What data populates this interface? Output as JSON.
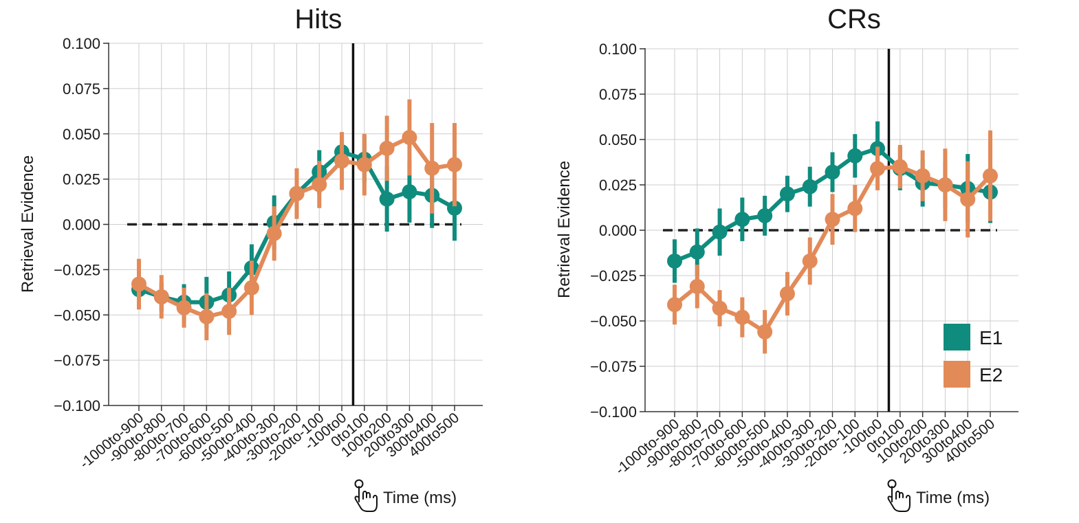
{
  "colors": {
    "e1": "#0F8C7E",
    "e2": "#E28A58",
    "grid": "#cccccc",
    "axis": "#333333",
    "zero_line": "#222222",
    "vline": "#111111"
  },
  "chart_data": [
    {
      "type": "line",
      "title": "Hits",
      "xlabel": "Time (ms)",
      "ylabel": "Retrieval Evidence",
      "ylim": [
        -0.1,
        0.1
      ],
      "yticks": [
        "0.100",
        "0.075",
        "0.050",
        "0.025",
        "0.000",
        "−0.025",
        "−0.050",
        "−0.075",
        "−0.100"
      ],
      "categories": [
        "-1000to-900",
        "-900to-800",
        "-800to-700",
        "-700to-600",
        "-600to-500",
        "-500to-400",
        "-400to-300",
        "-300to-200",
        "-200to-100",
        "-100to0",
        "0to100",
        "100to200",
        "200to300",
        "300to400",
        "400to500"
      ],
      "grid": true,
      "reference_lines": {
        "horizontal_y": 0,
        "vertical_between": [
          "-100to0",
          "0to100"
        ]
      },
      "series": [
        {
          "name": "E1",
          "color_key": "e1",
          "values": [
            -0.036,
            -0.04,
            -0.043,
            -0.043,
            -0.039,
            -0.024,
            0.001,
            0.017,
            0.029,
            0.04,
            0.036,
            0.014,
            0.018,
            0.016,
            0.009
          ],
          "errors": [
            0.01,
            0.008,
            0.01,
            0.014,
            0.013,
            0.013,
            0.015,
            0.013,
            0.012,
            0.009,
            0.013,
            0.018,
            0.017,
            0.018,
            0.018
          ]
        },
        {
          "name": "E2",
          "color_key": "e2",
          "values": [
            -0.033,
            -0.04,
            -0.046,
            -0.051,
            -0.048,
            -0.035,
            -0.005,
            0.017,
            0.022,
            0.035,
            0.033,
            0.042,
            0.048,
            0.031,
            0.033
          ],
          "errors": [
            0.014,
            0.012,
            0.011,
            0.013,
            0.013,
            0.015,
            0.015,
            0.014,
            0.013,
            0.016,
            0.017,
            0.018,
            0.021,
            0.025,
            0.023
          ]
        }
      ]
    },
    {
      "type": "line",
      "title": "CRs",
      "xlabel": "Time (ms)",
      "ylabel": "Retrieval Evidence",
      "ylim": [
        -0.1,
        0.1
      ],
      "yticks": [
        "0.100",
        "0.075",
        "0.050",
        "0.025",
        "0.000",
        "−0.025",
        "−0.050",
        "−0.075",
        "−0.100"
      ],
      "categories": [
        "-1000to-900",
        "-900to-800",
        "-800to-700",
        "-700to-600",
        "-600to-500",
        "-500to-400",
        "-400to-300",
        "-300to-200",
        "-200to-100",
        "-100to0",
        "0to100",
        "100to200",
        "200to300",
        "300to400",
        "400to500"
      ],
      "grid": true,
      "legend": {
        "position": "bottom-right",
        "entries": [
          "E1",
          "E2"
        ]
      },
      "reference_lines": {
        "horizontal_y": 0,
        "vertical_between": [
          "-100to0",
          "0to100"
        ]
      },
      "series": [
        {
          "name": "E1",
          "color_key": "e1",
          "values": [
            -0.017,
            -0.012,
            -0.001,
            0.006,
            0.008,
            0.02,
            0.024,
            0.032,
            0.041,
            0.045,
            0.034,
            0.026,
            0.025,
            0.023,
            0.021
          ],
          "errors": [
            0.012,
            0.013,
            0.013,
            0.012,
            0.011,
            0.01,
            0.011,
            0.011,
            0.012,
            0.015,
            0.012,
            0.013,
            0.013,
            0.019,
            0.017
          ]
        },
        {
          "name": "E2",
          "color_key": "e2",
          "values": [
            -0.041,
            -0.031,
            -0.043,
            -0.048,
            -0.056,
            -0.035,
            -0.017,
            0.006,
            0.012,
            0.034,
            0.035,
            0.03,
            0.025,
            0.017,
            0.03
          ],
          "errors": [
            0.011,
            0.012,
            0.01,
            0.011,
            0.012,
            0.012,
            0.013,
            0.014,
            0.013,
            0.012,
            0.012,
            0.014,
            0.02,
            0.021,
            0.025
          ]
        }
      ]
    }
  ]
}
